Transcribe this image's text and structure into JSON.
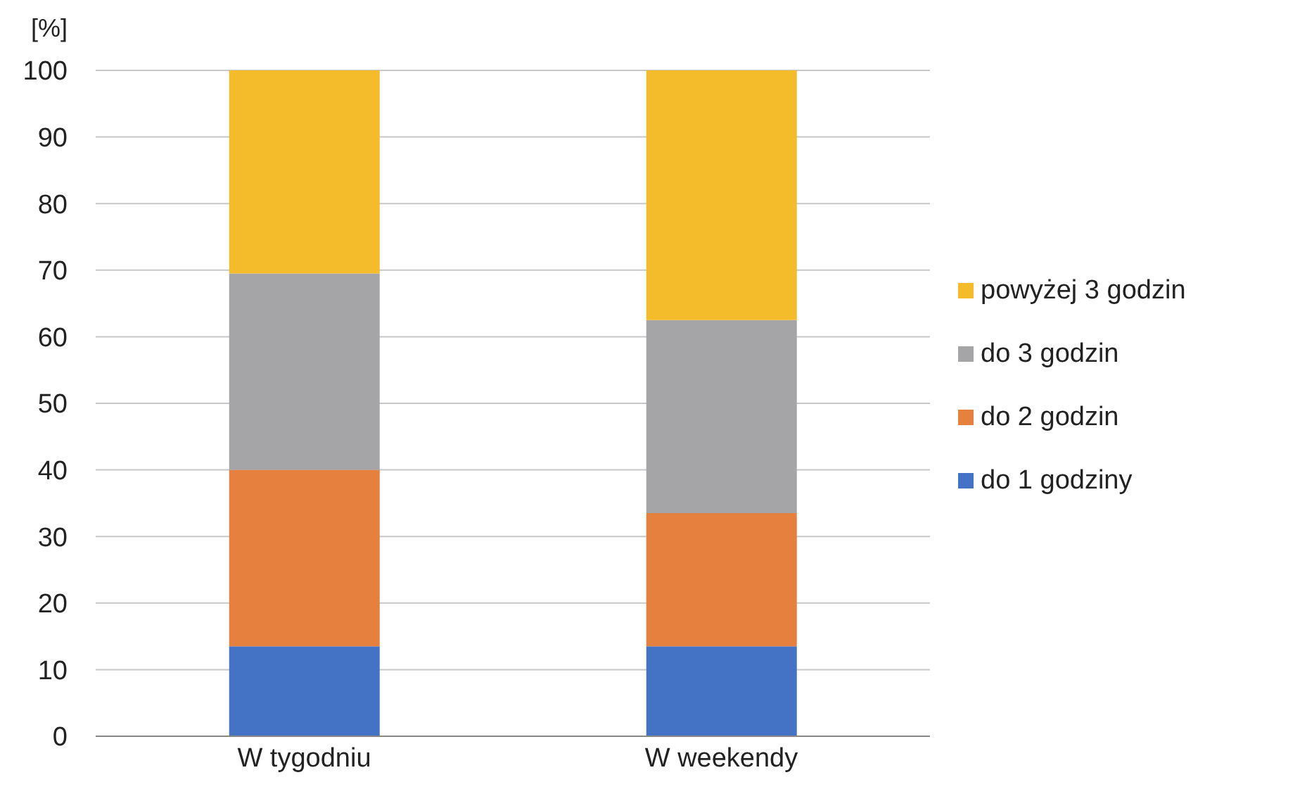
{
  "chart_data": {
    "type": "bar",
    "ylabel": "[%]",
    "categories": [
      "W tygodniu",
      "W weekendy"
    ],
    "stacked": true,
    "series": [
      {
        "name": "do 1 godziny",
        "color": "#4472c4",
        "values": [
          13.5,
          13.5
        ]
      },
      {
        "name": "do 2 godzin",
        "color": "#e5803e",
        "values": [
          26.5,
          20
        ]
      },
      {
        "name": "do 3 godzin",
        "color": "#a5a5a7",
        "values": [
          29.5,
          29
        ]
      },
      {
        "name": "powyżej 3 godzin",
        "color": "#f4bb2b",
        "values": [
          30.5,
          37.5
        ]
      }
    ],
    "ylim": [
      0,
      100
    ],
    "yticks": [
      0,
      10,
      20,
      30,
      40,
      50,
      60,
      70,
      80,
      90,
      100
    ],
    "grid": "y",
    "legend": "right"
  }
}
